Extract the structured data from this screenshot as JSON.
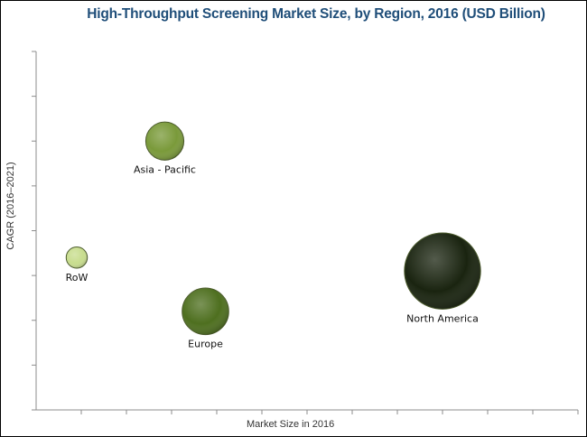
{
  "chart_data": {
    "type": "scatter",
    "title": "High-Throughput Screening Market Size, by Region, 2016 (USD Billion)",
    "xlabel": "Market Size in 2016",
    "ylabel": "CAGR (2016–2021)",
    "grid": false,
    "legend": "none",
    "ticks_shown_without_labels": true,
    "points": [
      {
        "label": "Asia - Pacific",
        "x": 1.9,
        "y": 6.0,
        "size": 0.45,
        "color": "#7a9a3a"
      },
      {
        "label": "RoW",
        "x": 0.6,
        "y": 3.4,
        "size": 0.25,
        "color": "#c8dd8e"
      },
      {
        "label": "Europe",
        "x": 2.5,
        "y": 2.2,
        "size": 0.55,
        "color": "#4e6f1f"
      },
      {
        "label": "North America",
        "x": 6.0,
        "y": 3.1,
        "size": 0.9,
        "color": "#1a2410"
      }
    ],
    "xlim": [
      0,
      8
    ],
    "ylim": [
      0,
      8
    ]
  }
}
